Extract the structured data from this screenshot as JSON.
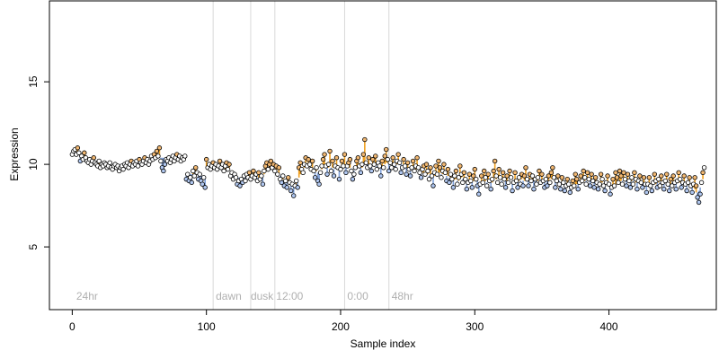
{
  "chart_data": {
    "type": "scatter",
    "title": "",
    "xlabel": "Sample index",
    "ylabel": "Expression",
    "xlim": [
      -17,
      480
    ],
    "ylim": [
      1.2,
      19.9
    ],
    "xticks": [
      0,
      100,
      200,
      300,
      400
    ],
    "yticks": [
      5,
      10,
      15
    ],
    "grid": false,
    "region_lines": [
      105,
      133,
      151,
      203,
      236
    ],
    "region_labels": [
      {
        "x": 3,
        "label": "24hr"
      },
      {
        "x": 107,
        "label": "dawn"
      },
      {
        "x": 133,
        "label": "dusk"
      },
      {
        "x": 152,
        "label": "12:00"
      },
      {
        "x": 205,
        "label": "0:00"
      },
      {
        "x": 238,
        "label": "48hr"
      }
    ],
    "colors": {
      "point_stroke": "#000000",
      "point_neutral": "#ffffff",
      "point_up": "#f2b872",
      "point_down": "#b0c7f0",
      "bar_up": "#f0a020",
      "bar_down": "#7fa0d8",
      "region_line": "#d9d9d9",
      "region_label": "#b0b0b0"
    },
    "series": [
      {
        "values": [
          10.6,
          10.8,
          10.9,
          10.6,
          11.0,
          10.7,
          10.2,
          10.5,
          10.3,
          10.7,
          10.4,
          10.2,
          10.1,
          10.3,
          10.0,
          10.2,
          10.4,
          10.1,
          10.0,
          9.9,
          10.2,
          9.8,
          10.0,
          9.9,
          10.1,
          10.0,
          9.8,
          9.9,
          10.1,
          9.8,
          9.7,
          9.9,
          10.0,
          9.8,
          9.9,
          9.6,
          9.8,
          9.9,
          9.7,
          10.0,
          9.9,
          10.1,
          9.8,
          10.0,
          10.2,
          9.9,
          10.1,
          10.0,
          10.2,
          9.9,
          10.3,
          10.1,
          10.0,
          10.2,
          10.4,
          10.1,
          10.3,
          10.0,
          10.2,
          10.5,
          10.3,
          10.6,
          10.4,
          10.8,
          10.5,
          11.0,
          10.2,
          9.8,
          9.6,
          10.0,
          10.3,
          10.2,
          10.4,
          10.1,
          10.3,
          10.5,
          10.2,
          10.4,
          10.6,
          10.3,
          10.5,
          10.2,
          10.4,
          10.3,
          10.5,
          9.1,
          9.4,
          9.0,
          9.2,
          8.9,
          9.6,
          9.3,
          9.8,
          9.5,
          9.1,
          9.4,
          9.0,
          8.8,
          9.2,
          8.6,
          10.3,
          9.8,
          10.0,
          9.7,
          9.9,
          10.1,
          9.8,
          10.0,
          9.7,
          9.9,
          10.2,
          9.8,
          10.0,
          9.6,
          9.9,
          10.1,
          9.7,
          10.0,
          9.3,
          9.5,
          9.1,
          9.4,
          9.2,
          8.8,
          9.0,
          8.7,
          9.1,
          8.9,
          9.3,
          9.0,
          9.4,
          9.2,
          9.5,
          9.1,
          9.3,
          9.6,
          9.2,
          9.4,
          9.0,
          9.5,
          9.1,
          9.3,
          8.8,
          9.6,
          9.9,
          10.1,
          9.7,
          10.0,
          10.2,
          9.8,
          10.0,
          9.6,
          9.9,
          9.4,
          9.8,
          9.1,
          8.9,
          9.3,
          8.7,
          9.0,
          8.6,
          9.2,
          8.9,
          8.4,
          8.8,
          8.1,
          8.7,
          9.0,
          8.6,
          9.8,
          10.1,
          9.7,
          9.5,
          10.0,
          10.4,
          9.9,
          10.3,
          10.0,
          9.7,
          10.2,
          9.6,
          9.2,
          9.8,
          9.0,
          8.8,
          9.5,
          9.9,
          10.3,
          10.6,
          9.9,
          9.4,
          10.0,
          10.8,
          9.6,
          10.2,
          9.3,
          9.9,
          10.4,
          9.8,
          9.1,
          9.7,
          10.2,
          9.9,
          10.6,
          9.5,
          9.9,
          10.1,
          10.3,
          9.6,
          9.1,
          9.4,
          9.8,
          10.2,
          10.4,
          9.9,
          9.5,
          10.0,
          10.6,
          11.5,
          10.1,
          9.8,
          10.4,
          9.9,
          9.6,
          10.3,
          10.0,
          10.5,
          9.7,
          10.1,
          9.9,
          9.3,
          10.2,
          9.8,
          10.5,
          10.9,
          10.3,
          9.6,
          10.1,
          9.8,
          10.4,
          10.0,
          9.7,
          10.2,
          10.6,
          10.1,
          9.5,
          9.8,
          10.3,
          9.9,
          9.4,
          10.1,
          9.7,
          9.3,
          9.8,
          10.2,
          9.6,
          9.9,
          10.4,
          9.8,
          9.5,
          9.2,
          9.7,
          9.9,
          9.4,
          10.0,
          9.6,
          9.1,
          9.8,
          9.3,
          8.7,
          9.5,
          9.9,
          9.4,
          10.2,
          9.8,
          9.2,
          9.6,
          10.0,
          9.5,
          9.0,
          9.7,
          8.9,
          9.4,
          9.1,
          8.6,
          9.3,
          9.6,
          8.8,
          9.2,
          9.9,
          9.4,
          8.9,
          9.5,
          9.1,
          8.5,
          8.9,
          9.4,
          9.0,
          8.6,
          9.3,
          9.7,
          9.1,
          8.7,
          8.2,
          8.8,
          9.3,
          8.9,
          9.6,
          9.2,
          8.7,
          9.4,
          9.0,
          8.5,
          9.1,
          9.6,
          10.2,
          9.3,
          8.9,
          9.7,
          9.2,
          8.8,
          9.5,
          9.1,
          8.6,
          9.3,
          8.9,
          9.6,
          9.2,
          8.4,
          8.9,
          9.5,
          9.0,
          8.6,
          9.2,
          8.8,
          9.4,
          8.7,
          9.3,
          9.8,
          9.1,
          8.7,
          9.4,
          9.0,
          9.3,
          8.5,
          9.1,
          8.8,
          9.2,
          9.6,
          8.9,
          9.4,
          9.0,
          8.6,
          9.1,
          8.7,
          9.3,
          8.9,
          9.5,
          9.8,
          9.2,
          8.6,
          9.0,
          9.3,
          8.8,
          8.5,
          9.2,
          8.9,
          8.4,
          8.7,
          9.1,
          8.8,
          8.3,
          8.6,
          9.0,
          8.7,
          9.4,
          9.1,
          8.5,
          8.9,
          9.3,
          9.0,
          9.6,
          9.2,
          8.8,
          9.5,
          9.1,
          8.7,
          9.4,
          9.0,
          8.6,
          9.2,
          8.9,
          8.5,
          8.8,
          9.4,
          9.1,
          8.7,
          8.4,
          8.9,
          9.3,
          8.8,
          8.2,
          8.6,
          9.1,
          8.7,
          9.5,
          9.2,
          8.9,
          9.6,
          9.3,
          8.8,
          9.5,
          9.1,
          8.7,
          9.4,
          9.0,
          8.6,
          9.2,
          8.8,
          9.5,
          9.1,
          8.5,
          9.0,
          9.3,
          8.9,
          8.6,
          9.2,
          8.8,
          8.3,
          8.8,
          9.2,
          8.7,
          8.4,
          8.9,
          9.4,
          9.0,
          8.6,
          9.1,
          8.7,
          9.3,
          8.9,
          8.5,
          9.0,
          9.4,
          8.8,
          8.4,
          9.1,
          8.7,
          9.3,
          8.9,
          8.5,
          9.0,
          9.5,
          9.1,
          8.6,
          8.9,
          9.3,
          8.8,
          8.4,
          8.9,
          9.2,
          8.7,
          8.3,
          8.8,
          9.2,
          8.7,
          8.0,
          7.7,
          8.2,
          8.9,
          9.5,
          9.8
        ],
        "baseline": [
          10.6,
          10.7,
          10.7,
          10.7,
          10.7,
          10.6,
          10.5,
          10.5,
          10.4,
          10.4,
          10.3,
          10.3,
          10.2,
          10.2,
          10.1,
          10.1,
          10.1,
          10.0,
          10.0,
          10.0,
          10.0,
          9.9,
          9.9,
          9.9,
          9.9,
          9.9,
          9.9,
          9.9,
          9.9,
          9.8,
          9.8,
          9.8,
          9.8,
          9.8,
          9.8,
          9.8,
          9.8,
          9.8,
          9.8,
          9.8,
          9.9,
          9.9,
          9.9,
          9.9,
          9.9,
          9.9,
          10.0,
          10.0,
          10.0,
          10.0,
          10.0,
          10.1,
          10.1,
          10.1,
          10.1,
          10.2,
          10.2,
          10.2,
          10.2,
          10.3,
          10.3,
          10.3,
          10.3,
          10.4,
          10.4,
          10.4,
          10.4,
          10.4,
          10.4,
          10.3,
          10.3,
          10.3,
          10.3,
          10.3,
          10.3,
          10.3,
          10.3,
          10.3,
          10.3,
          10.3,
          10.3,
          10.3,
          10.3,
          10.3,
          10.3,
          9.4,
          9.4,
          9.4,
          9.4,
          9.4,
          9.4,
          9.4,
          9.4,
          9.4,
          9.4,
          9.4,
          9.3,
          9.3,
          9.3,
          9.3,
          9.8,
          9.8,
          9.8,
          9.8,
          9.8,
          9.8,
          9.8,
          9.8,
          9.8,
          9.8,
          9.8,
          9.8,
          9.8,
          9.7,
          9.7,
          9.7,
          9.7,
          9.7,
          9.4,
          9.4,
          9.3,
          9.3,
          9.3,
          9.2,
          9.2,
          9.2,
          9.2,
          9.2,
          9.2,
          9.2,
          9.2,
          9.2,
          9.2,
          9.2,
          9.2,
          9.2,
          9.2,
          9.2,
          9.2,
          9.2,
          9.2,
          9.2,
          9.2,
          9.4,
          9.5,
          9.6,
          9.6,
          9.7,
          9.7,
          9.7,
          9.7,
          9.6,
          9.6,
          9.5,
          9.4,
          9.3,
          9.2,
          9.1,
          9.0,
          8.9,
          8.9,
          8.8,
          8.8,
          8.7,
          8.7,
          8.7,
          8.7,
          8.8,
          8.9,
          9.2,
          9.4,
          9.6,
          9.7,
          9.8,
          9.9,
          9.9,
          9.9,
          9.9,
          9.8,
          9.8,
          9.7,
          9.6,
          9.6,
          9.5,
          9.5,
          9.6,
          9.7,
          9.8,
          9.9,
          9.9,
          9.8,
          9.8,
          9.9,
          9.8,
          9.8,
          9.7,
          9.8,
          9.8,
          9.8,
          9.7,
          9.7,
          9.8,
          9.9,
          9.9,
          9.8,
          9.8,
          9.8,
          9.8,
          9.7,
          9.6,
          9.6,
          9.7,
          9.8,
          9.9,
          9.9,
          9.8,
          9.8,
          9.9,
          10.0,
          10.0,
          10.0,
          10.0,
          9.9,
          9.9,
          10.0,
          10.0,
          10.0,
          9.9,
          9.9,
          9.9,
          9.8,
          9.9,
          9.9,
          10.0,
          10.1,
          10.1,
          10.0,
          10.0,
          9.9,
          10.0,
          10.0,
          9.9,
          10.0,
          10.1,
          10.1,
          10.0,
          9.9,
          10.0,
          9.9,
          9.8,
          9.8,
          9.7,
          9.6,
          9.7,
          9.7,
          9.7,
          9.7,
          9.8,
          9.7,
          9.6,
          9.5,
          9.5,
          9.5,
          9.4,
          9.5,
          9.4,
          9.3,
          9.4,
          9.3,
          9.2,
          9.3,
          9.4,
          9.4,
          9.5,
          9.5,
          9.4,
          9.4,
          9.5,
          9.4,
          9.3,
          9.3,
          9.2,
          9.2,
          9.1,
          9.0,
          9.1,
          9.1,
          9.0,
          9.0,
          9.2,
          9.2,
          9.1,
          9.1,
          9.0,
          8.9,
          8.9,
          9.0,
          9.0,
          8.9,
          9.0,
          9.1,
          9.1,
          9.0,
          8.8,
          8.8,
          8.9,
          8.9,
          9.0,
          9.0,
          8.9,
          9.0,
          9.0,
          8.9,
          8.9,
          9.0,
          9.2,
          9.1,
          9.0,
          9.1,
          9.1,
          9.0,
          9.1,
          9.1,
          9.0,
          9.0,
          9.0,
          9.1,
          9.1,
          8.9,
          8.9,
          9.0,
          9.0,
          8.9,
          9.0,
          9.0,
          9.1,
          9.0,
          9.0,
          9.1,
          9.1,
          9.0,
          9.1,
          9.1,
          9.1,
          9.0,
          9.0,
          9.0,
          9.0,
          9.1,
          9.1,
          9.1,
          9.1,
          9.0,
          9.0,
          9.0,
          9.0,
          9.0,
          9.1,
          9.2,
          9.1,
          9.0,
          9.0,
          9.0,
          9.0,
          8.9,
          8.9,
          8.9,
          8.8,
          8.8,
          8.8,
          8.8,
          8.7,
          8.7,
          8.7,
          8.7,
          8.8,
          8.8,
          8.8,
          8.8,
          8.9,
          8.9,
          9.0,
          9.0,
          9.0,
          9.0,
          9.0,
          9.0,
          9.0,
          9.0,
          8.9,
          8.9,
          8.9,
          8.9,
          8.9,
          8.9,
          8.9,
          8.8,
          8.8,
          8.8,
          8.8,
          8.8,
          8.7,
          8.7,
          8.7,
          8.8,
          8.8,
          8.8,
          8.9,
          8.9,
          9.0,
          9.0,
          9.0,
          9.0,
          9.0,
          9.0,
          9.0,
          9.0,
          9.0,
          9.0,
          9.0,
          8.9,
          8.9,
          8.9,
          8.9,
          8.9,
          8.9,
          8.9,
          8.8,
          8.8,
          8.7,
          8.7,
          8.8,
          8.8,
          8.8,
          8.8,
          8.8,
          8.9,
          8.9,
          8.9,
          8.9,
          8.9,
          8.9,
          8.9,
          8.9,
          8.9,
          8.9,
          8.8,
          8.9,
          8.9,
          8.9,
          8.9,
          8.9,
          8.9,
          8.9,
          8.9,
          8.9,
          8.8,
          8.8,
          8.8,
          8.8,
          8.7,
          8.7,
          8.7,
          8.6,
          8.5,
          8.3,
          8.3,
          8.4,
          8.6,
          8.9,
          9.1
        ]
      }
    ]
  }
}
